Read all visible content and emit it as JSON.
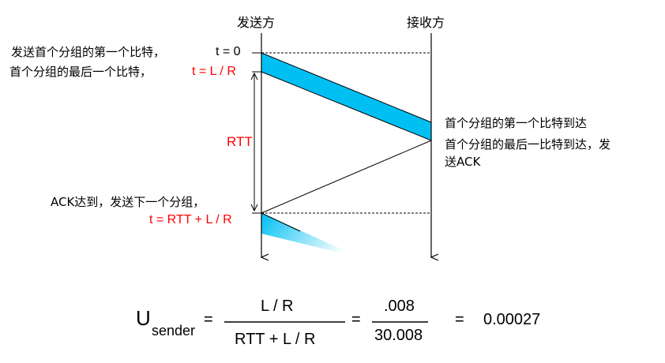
{
  "headers": {
    "sender": "发送方",
    "receiver": "接收方"
  },
  "annotations": {
    "first_bit_sent": "发送首个分组的第一个比特，",
    "t0": "t = 0",
    "last_bit_sent": "首个分组的最后一个比特，",
    "t_LR": "t = L / R",
    "rtt": "RTT",
    "ack_arrived": "ACK达到，发送下一个分组，",
    "t_next": "t = RTT + L / R",
    "first_bit_arrives": "首个分组的第一个比特到达",
    "last_bit_arrives_line1": "首个分组的最后一比特到达，发",
    "last_bit_arrives_line2": "送ACK"
  },
  "formula": {
    "u": "U",
    "sub": "sender",
    "eq1": "=",
    "num1": "L / R",
    "den1": "RTT + L / R",
    "eq2": "=",
    "num2": ".008",
    "den2": "30.008",
    "eq3": "=",
    "result": "0.00027"
  },
  "colors": {
    "packet": "#00bff3",
    "label_red": "#ff0000"
  }
}
